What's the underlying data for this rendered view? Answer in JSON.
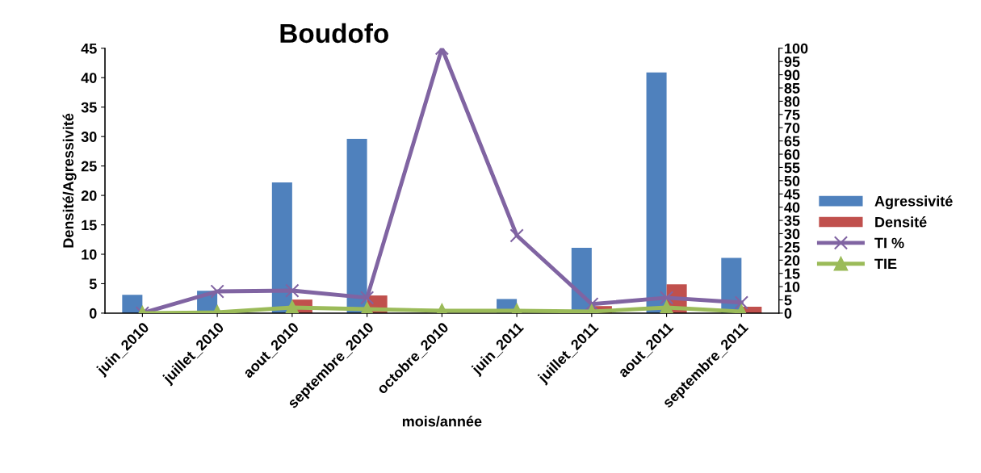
{
  "chart_data": {
    "type": "bar",
    "title": "Boudofo",
    "xlabel": "mois/année",
    "ylabel": "Densité/Agressivité",
    "categories": [
      "juin_2010",
      "juillet_2010",
      "aout_2010",
      "septembre_2010",
      "octobre_2010",
      "juin_2011",
      "juillet_2011",
      "aout_2011",
      "septembre_2011"
    ],
    "series": [
      {
        "name": "Agressivité",
        "color": "#4f81bd",
        "values": [
          3.1,
          3.8,
          22.2,
          29.6,
          0,
          2.4,
          11.1,
          40.9,
          9.4
        ]
      },
      {
        "name": "Densité",
        "color": "#c0504d",
        "values": [
          0,
          0,
          2.3,
          3.0,
          0,
          0,
          1.2,
          4.9,
          1.1
        ]
      },
      {
        "name": "TI %",
        "type": "line",
        "axis": "y2",
        "marker": "cross",
        "color": "#8064a2",
        "values": [
          0,
          8.2,
          8.5,
          5.8,
          100,
          29.3,
          3.4,
          5.8,
          4.0
        ]
      },
      {
        "name": "TIE",
        "type": "line",
        "axis": "y2",
        "marker": "triangle",
        "color": "#9bbb59",
        "values": [
          0,
          0.3,
          2.1,
          1.5,
          0.9,
          0.9,
          0.6,
          2.1,
          0.6
        ]
      }
    ],
    "ylim": [
      0,
      45
    ],
    "yticks": [
      0,
      5,
      10,
      15,
      20,
      25,
      30,
      35,
      40,
      45
    ],
    "y2lim": [
      0,
      100
    ],
    "y2ticks": [
      0,
      5,
      10,
      15,
      20,
      25,
      30,
      35,
      40,
      45,
      50,
      55,
      60,
      65,
      70,
      75,
      80,
      85,
      90,
      95,
      100
    ],
    "grid": false,
    "legend": "right"
  }
}
